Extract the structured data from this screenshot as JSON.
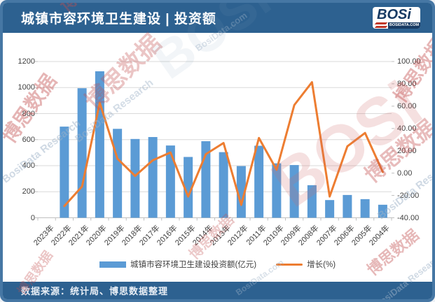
{
  "header": {
    "title": "城镇市容环境卫生建设 | 投资额",
    "logo_text": "BOSi",
    "logo_subtext": "BOSIDATA.COM"
  },
  "footer": {
    "source": "数据来源：统计局、博思数据整理"
  },
  "watermarks": {
    "cn": "博思数据",
    "en": "BosiData Research",
    "en2": "BosiData.com",
    "logo": "BOSi"
  },
  "chart_data": {
    "type": "combo-bar-line",
    "title": "城镇市容环境卫生建设 | 投资额",
    "categories": [
      "2023年",
      "2022年",
      "2021年",
      "2020年",
      "2019年",
      "2018年",
      "2017年",
      "2016年",
      "2015年",
      "2014年",
      "2013年",
      "2012年",
      "2011年",
      "2010年",
      "2009年",
      "2008年",
      "2007年",
      "2006年",
      "2005年",
      "2004年"
    ],
    "series": [
      {
        "name": "城镇市容环境卫生建设投资额(亿元)",
        "type": "bar",
        "axis": "left",
        "color": "#5B9BD5",
        "values": [
          null,
          700,
          995,
          1125,
          683,
          605,
          620,
          555,
          467,
          588,
          504,
          397,
          553,
          418,
          405,
          250,
          136,
          175,
          143,
          100
        ]
      },
      {
        "name": "增长(%)",
        "type": "line",
        "axis": "right",
        "color": "#ED7D31",
        "values": [
          null,
          -29.5,
          -12.0,
          63.0,
          13.0,
          -2.5,
          11.5,
          18.5,
          -21.0,
          17.0,
          27.0,
          -28.5,
          31.5,
          3.0,
          61.0,
          81.5,
          -21.0,
          24.0,
          36.0,
          1.0
        ]
      }
    ],
    "left_axis": {
      "min": 0,
      "max": 1200,
      "step": 200,
      "unit": "亿元"
    },
    "right_axis": {
      "min": -40,
      "max": 100,
      "step": 20,
      "unit": "%",
      "decimals": 2
    },
    "legend_position": "bottom",
    "grid": "horizontal"
  }
}
